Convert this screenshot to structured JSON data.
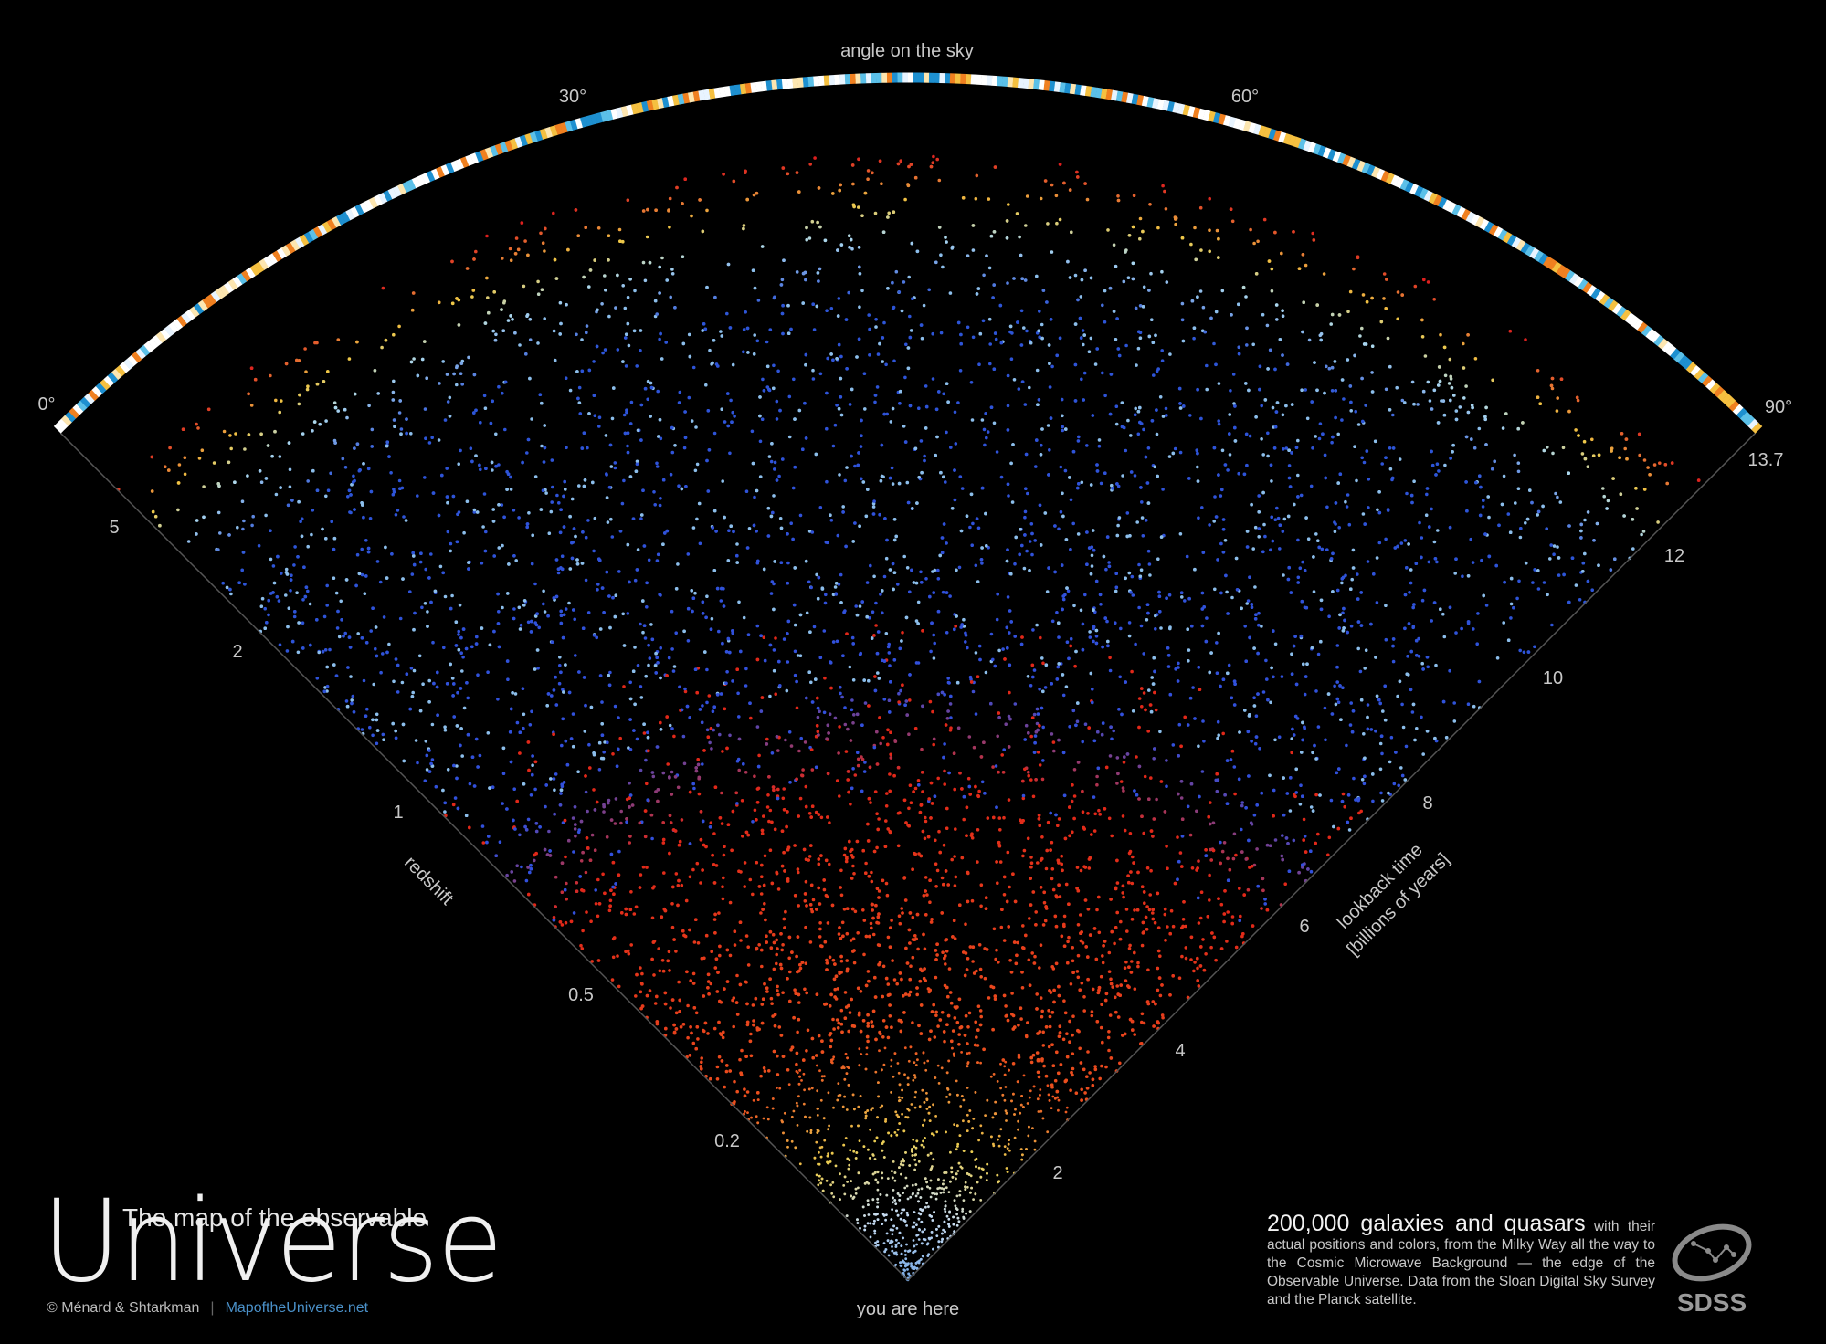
{
  "header": {
    "axis_title": "angle on the sky",
    "angle_labels": [
      "0°",
      "30°",
      "60°",
      "90°"
    ]
  },
  "left_axis": {
    "title": "redshift",
    "labels": [
      "5",
      "2",
      "1",
      "0.5",
      "0.2"
    ]
  },
  "right_axis": {
    "title": "lookback time",
    "subtitle": "[billions of years]",
    "labels": [
      "13.7",
      "12",
      "10",
      "8",
      "6",
      "4",
      "2"
    ]
  },
  "origin_label": "you are here",
  "branding": {
    "line1": "The map of the observable",
    "line2": "Universe",
    "credit": "© Ménard & Shtarkman",
    "separator": "|",
    "website": "MapoftheUniverse.net"
  },
  "description": {
    "headline": "200,000 galaxies and quasars",
    "body": "with their actual positions and colors, from the Milky Way all the way to the Cosmic Microwave Background — the edge of the Observable Universe. Data from the Sloan Digital Sky Survey and the Planck satellite."
  },
  "logo": {
    "text": "SDSS"
  }
}
